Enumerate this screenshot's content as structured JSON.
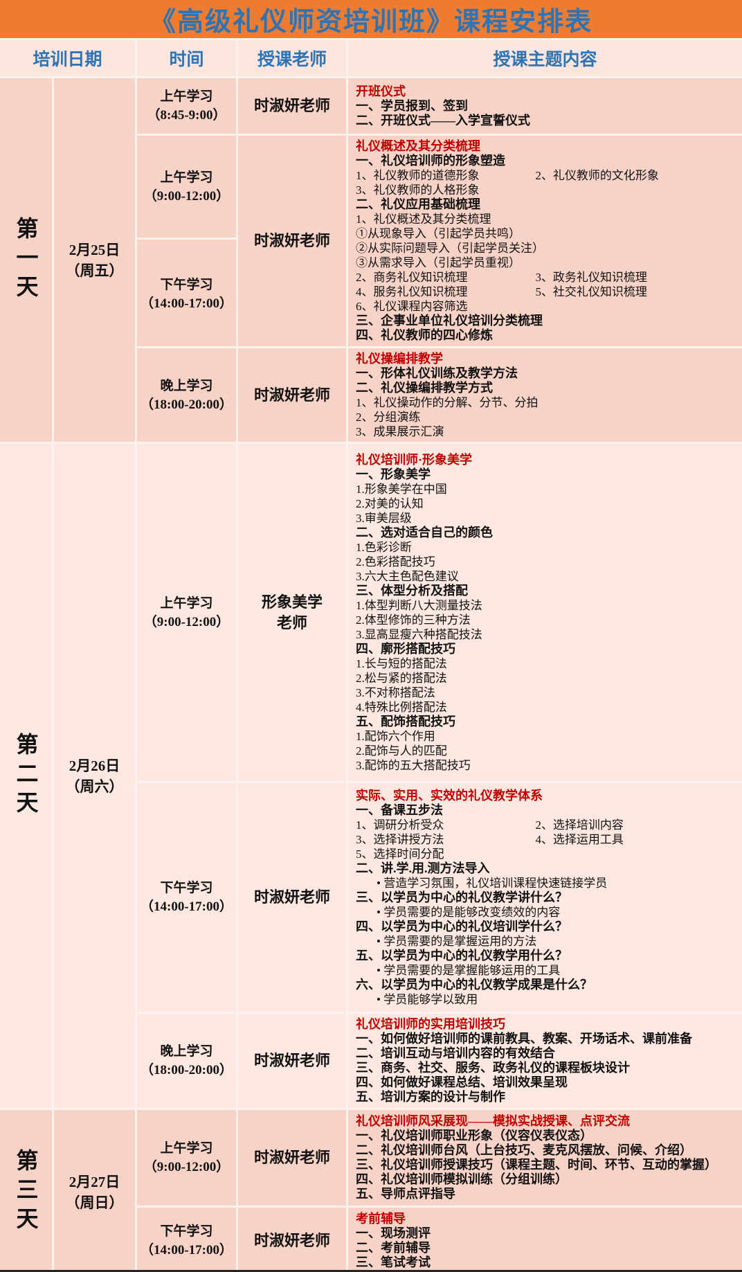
{
  "title": "《高级礼仪师资培训班》课程安排表",
  "columns": {
    "date": "培训日期",
    "time": "时间",
    "teacher": "授课老师",
    "content": "授课主题内容"
  },
  "colors": {
    "orange": "#ED7C31",
    "blue": "#2E74B5",
    "red": "#C00000",
    "salmon": "#F7D2C6",
    "light": "#FCE8E0",
    "header_bg": "#FBE5DD",
    "grid": "#FCF2ED"
  },
  "days": [
    {
      "label": "第一天",
      "date": "2月25日\n（周五）",
      "slots": [
        {
          "times": [
            "上午学习\n（8:45-9:00）"
          ],
          "teacher": "时淑妍老师",
          "lines": [
            {
              "t": "开班仪式",
              "s": "h"
            },
            {
              "t": "一、学员报到、签到",
              "s": "b"
            },
            {
              "t": "二、开班仪式——入学宣誓仪式",
              "s": "b"
            }
          ]
        },
        {
          "times": [
            "上午学习\n（9:00-12:00）",
            "下午学习\n（14:00-17:00）"
          ],
          "teacher": "时淑妍老师",
          "lines": [
            {
              "t": "礼仪概述及其分类梳理",
              "s": "h"
            },
            {
              "t": "一、礼仪培训师的形象塑造",
              "s": "b"
            },
            {
              "t": "1、礼仪教师的道德形象",
              "s": "n",
              "r": "2、礼仪教师的文化形象"
            },
            {
              "t": "3、礼仪教师的人格形象",
              "s": "n"
            },
            {
              "t": "二、礼仪应用基础梳理",
              "s": "b"
            },
            {
              "t": "1、礼仪概述及其分类梳理",
              "s": "n"
            },
            {
              "t": "①从现象导入（引起学员共鸣）",
              "s": "n"
            },
            {
              "t": "②从实际问题导入（引起学员关注）",
              "s": "n"
            },
            {
              "t": "③从需求导入（引起学员重视）",
              "s": "n"
            },
            {
              "t": "2、商务礼仪知识梳理",
              "s": "n",
              "r": "3、政务礼仪知识梳理"
            },
            {
              "t": "4、服务礼仪知识梳理",
              "s": "n",
              "r": "5、社交礼仪知识梳理"
            },
            {
              "t": "6、礼仪课程内容筛选",
              "s": "n"
            },
            {
              "t": "三、企事业单位礼仪培训分类梳理",
              "s": "b"
            },
            {
              "t": "四、礼仪教师的四心修炼",
              "s": "b"
            }
          ]
        },
        {
          "times": [
            "晚上学习\n（18:00-20:00）"
          ],
          "teacher": "时淑妍老师",
          "lines": [
            {
              "t": "礼仪操编排教学",
              "s": "h"
            },
            {
              "t": "一、形体礼仪训练及教学方法",
              "s": "b"
            },
            {
              "t": "二、礼仪操编排教学方式",
              "s": "b"
            },
            {
              "t": "1、礼仪操动作的分解、分节、分拍",
              "s": "n"
            },
            {
              "t": "2、分组演练",
              "s": "n"
            },
            {
              "t": "3、成果展示汇演",
              "s": "n"
            }
          ]
        }
      ]
    },
    {
      "label": "第二天",
      "date": "2月26日\n（周六）",
      "slots": [
        {
          "times": [
            "上午学习\n（9:00-12:00）"
          ],
          "teacher": "形象美学\n老师",
          "lines": [
            {
              "t": "礼仪培训师·形象美学",
              "s": "h"
            },
            {
              "t": "一、形象美学",
              "s": "b"
            },
            {
              "t": "1.形象美学在中国",
              "s": "n"
            },
            {
              "t": "2.对美的认知",
              "s": "n"
            },
            {
              "t": "3.审美层级",
              "s": "n"
            },
            {
              "t": "二、选对适合自己的颜色",
              "s": "b"
            },
            {
              "t": "1.色彩诊断",
              "s": "n"
            },
            {
              "t": "2.色彩搭配技巧",
              "s": "n"
            },
            {
              "t": "3.六大主色配色建议",
              "s": "n"
            },
            {
              "t": "三、体型分析及搭配",
              "s": "b"
            },
            {
              "t": "1.体型判断八大测量技法",
              "s": "n"
            },
            {
              "t": "2.体型修饰的三种方法",
              "s": "n"
            },
            {
              "t": "3.显高显瘦六种搭配技法",
              "s": "n"
            },
            {
              "t": "四、廓形搭配技巧",
              "s": "b"
            },
            {
              "t": "1.长与短的搭配法",
              "s": "n"
            },
            {
              "t": "2.松与紧的搭配法",
              "s": "n"
            },
            {
              "t": "3.不对称搭配法",
              "s": "n"
            },
            {
              "t": "4.特殊比例搭配法",
              "s": "n"
            },
            {
              "t": "五、配饰搭配技巧",
              "s": "b"
            },
            {
              "t": "1.配饰六个作用",
              "s": "n"
            },
            {
              "t": "2.配饰与人的匹配",
              "s": "n"
            },
            {
              "t": "3.配饰的五大搭配技巧",
              "s": "n"
            }
          ]
        },
        {
          "times": [
            "下午学习\n（14:00-17:00）"
          ],
          "teacher": "时淑妍老师",
          "lines": [
            {
              "t": "实际、实用、实效的礼仪教学体系",
              "s": "h"
            },
            {
              "t": "一、备课五步法",
              "s": "b"
            },
            {
              "t": "1、调研分析受众",
              "s": "n",
              "r": "2、选择培训内容"
            },
            {
              "t": "3、选择讲授方法",
              "s": "n",
              "r": "4、选择运用工具"
            },
            {
              "t": "5、选择时间分配",
              "s": "n"
            },
            {
              "t": "二、讲.学.用.测方法导入",
              "s": "b"
            },
            {
              "t": "• 营造学习氛围，礼仪培训课程快速链接学员",
              "s": "n",
              "i": true
            },
            {
              "t": "三、以学员为中心的礼仪教学讲什么？",
              "s": "b"
            },
            {
              "t": "• 学员需要的是能够改变绩效的内容",
              "s": "n",
              "i": true
            },
            {
              "t": "四、以学员为中心的礼仪培训学什么？",
              "s": "b"
            },
            {
              "t": "• 学员需要的是掌握运用的方法",
              "s": "n",
              "i": true
            },
            {
              "t": "五、以学员为中心的礼仪教学用什么？",
              "s": "b"
            },
            {
              "t": "• 学员需要的是掌握能够运用的工具",
              "s": "n",
              "i": true
            },
            {
              "t": "六、以学员为中心的礼仪教学成果是什么？",
              "s": "b"
            },
            {
              "t": "• 学员能够学以致用",
              "s": "n",
              "i": true
            }
          ]
        },
        {
          "times": [
            "晚上学习\n（18:00-20:00）"
          ],
          "teacher": "时淑妍老师",
          "lines": [
            {
              "t": "礼仪培训师的实用培训技巧",
              "s": "h"
            },
            {
              "t": "一、如何做好培训师的课前教具、教案、开场话术、课前准备",
              "s": "b"
            },
            {
              "t": "二、培训互动与培训内容的有效结合",
              "s": "b"
            },
            {
              "t": "三、商务、社交、服务、政务礼仪的课程板块设计",
              "s": "b"
            },
            {
              "t": "四、如何做好课程总结、培训效果呈现",
              "s": "b"
            },
            {
              "t": "五、培训方案的设计与制作",
              "s": "b"
            }
          ]
        }
      ]
    },
    {
      "label": "第三天",
      "date": "2月27日\n（周日）",
      "slots": [
        {
          "times": [
            "上午学习\n（9:00-12:00）"
          ],
          "teacher": "时淑妍老师",
          "lines": [
            {
              "t": "礼仪培训师风采展现——模拟实战授课、点评交流",
              "s": "h"
            },
            {
              "t": "一、礼仪培训师职业形象（仪容仪表仪态）",
              "s": "b"
            },
            {
              "t": "二、礼仪培训师台风（上台技巧、麦克风摆放、问候、介绍）",
              "s": "b"
            },
            {
              "t": "三、礼仪培训师授课技巧（课程主题、时间、环节、互动的掌握）",
              "s": "b"
            },
            {
              "t": "四、礼仪培训师模拟训练（分组训练）",
              "s": "b"
            },
            {
              "t": "五、导师点评指导",
              "s": "b"
            }
          ]
        },
        {
          "times": [
            "下午学习\n（14:00-17:00）"
          ],
          "teacher": "时淑妍老师",
          "lines": [
            {
              "t": "考前辅导",
              "s": "h"
            },
            {
              "t": "一、现场测评",
              "s": "b"
            },
            {
              "t": "二、考前辅导",
              "s": "b"
            },
            {
              "t": "三、笔试考试",
              "s": "b"
            }
          ]
        }
      ]
    }
  ]
}
